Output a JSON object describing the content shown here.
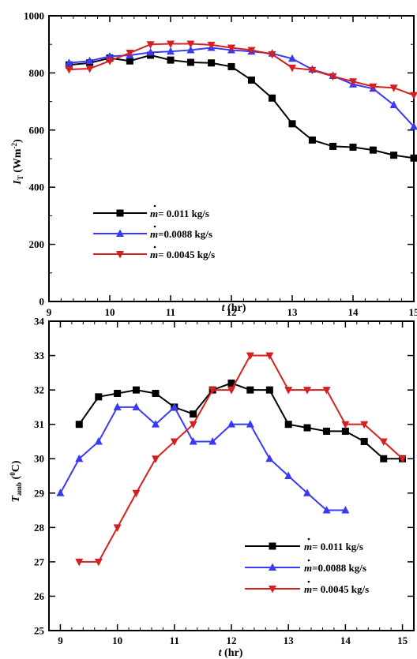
{
  "chart_data": [
    {
      "type": "line",
      "xlabel": "t (hr)",
      "ylabel": "I_T (Wm^-2)",
      "xlim": [
        9,
        15
      ],
      "ylim": [
        0,
        1000
      ],
      "xticks": [
        "9",
        "10",
        "11",
        "12",
        "13",
        "14",
        "15"
      ],
      "yticks": [
        "0",
        "200",
        "400",
        "600",
        "800",
        "1000"
      ],
      "legend_position": "center-left",
      "grid": false,
      "series": [
        {
          "name": "ṁ= 0.011 kg/s",
          "label": "= 0.011 kg/s",
          "color": "#000000",
          "marker": "square",
          "x": [
            9.33,
            9.67,
            10.0,
            10.33,
            10.67,
            11.0,
            11.33,
            11.67,
            12.0,
            12.33,
            12.67,
            13.0,
            13.33,
            13.67,
            14.0,
            14.33,
            14.67,
            15.0
          ],
          "y": [
            828,
            835,
            852,
            842,
            862,
            845,
            837,
            835,
            822,
            775,
            712,
            622,
            565,
            543,
            540,
            530,
            512,
            502
          ]
        },
        {
          "name": "ṁ=0.0088 kg/s",
          "label": "=0.0088 kg/s",
          "color": "#3a3af5",
          "marker": "triangle-up",
          "x": [
            9.33,
            9.67,
            10.0,
            10.33,
            10.67,
            11.0,
            11.33,
            11.67,
            12.0,
            12.33,
            12.67,
            13.0,
            13.33,
            13.67,
            14.0,
            14.33,
            14.67,
            15.0
          ],
          "y": [
            835,
            842,
            858,
            862,
            872,
            875,
            880,
            888,
            880,
            875,
            868,
            850,
            812,
            790,
            760,
            745,
            688,
            612
          ]
        },
        {
          "name": "ṁ= 0.0045 kg/s",
          "label": "= 0.0045 kg/s",
          "color": "#d42020",
          "marker": "triangle-down",
          "x": [
            9.33,
            9.67,
            10.0,
            10.33,
            10.67,
            11.0,
            11.33,
            11.67,
            12.0,
            12.33,
            12.67,
            13.0,
            13.33,
            13.67,
            14.0,
            14.33,
            14.67,
            15.0
          ],
          "y": [
            812,
            815,
            842,
            870,
            900,
            902,
            902,
            898,
            888,
            880,
            865,
            818,
            810,
            788,
            770,
            752,
            748,
            722
          ]
        }
      ]
    },
    {
      "type": "line",
      "xlabel": "t (hr)",
      "ylabel": "T_amb (0C)",
      "xlim": [
        8.8,
        15.2
      ],
      "ylim": [
        25,
        34
      ],
      "xticks": [
        "9",
        "10",
        "11",
        "12",
        "13",
        "14",
        "15"
      ],
      "yticks": [
        "25",
        "26",
        "27",
        "28",
        "29",
        "30",
        "31",
        "32",
        "33",
        "34"
      ],
      "legend_position": "bottom-right",
      "grid": false,
      "series": [
        {
          "name": "ṁ= 0.011 kg/s",
          "label": "= 0.011 kg/s",
          "color": "#000000",
          "marker": "square",
          "x": [
            9.33,
            9.67,
            10.0,
            10.33,
            10.67,
            11.0,
            11.33,
            11.67,
            12.0,
            12.33,
            12.67,
            13.0,
            13.33,
            13.67,
            14.0,
            14.33,
            14.67,
            15.0
          ],
          "y": [
            31.0,
            31.8,
            31.9,
            32.0,
            31.9,
            31.5,
            31.3,
            32.0,
            32.2,
            32.0,
            32.0,
            31.0,
            30.9,
            30.8,
            30.8,
            30.5,
            30.0,
            30.0
          ]
        },
        {
          "name": "ṁ=0.0088 kg/s",
          "label": "=0.0088 kg/s",
          "color": "#3a3af5",
          "marker": "triangle-up",
          "x": [
            9.0,
            9.33,
            9.67,
            10.0,
            10.33,
            10.67,
            11.0,
            11.33,
            11.67,
            12.0,
            12.33,
            12.67,
            13.0,
            13.33,
            13.67,
            14.0
          ],
          "y": [
            29.0,
            30.0,
            30.5,
            31.5,
            31.5,
            31.0,
            31.5,
            30.5,
            30.5,
            31.0,
            31.0,
            30.0,
            29.5,
            29.0,
            28.5,
            28.5
          ]
        },
        {
          "name": "ṁ= 0.0045 kg/s",
          "label": "= 0.0045 kg/s",
          "color": "#d42020",
          "marker": "triangle-down",
          "x": [
            9.33,
            9.67,
            10.0,
            10.33,
            10.67,
            11.0,
            11.33,
            11.67,
            12.0,
            12.33,
            12.67,
            13.0,
            13.33,
            13.67,
            14.0,
            14.33,
            14.67,
            15.0
          ],
          "y": [
            27.0,
            27.0,
            28.0,
            29.0,
            30.0,
            30.5,
            31.0,
            32.0,
            32.0,
            33.0,
            33.0,
            32.0,
            32.0,
            32.0,
            31.0,
            31.0,
            30.5,
            30.0
          ]
        }
      ]
    }
  ]
}
